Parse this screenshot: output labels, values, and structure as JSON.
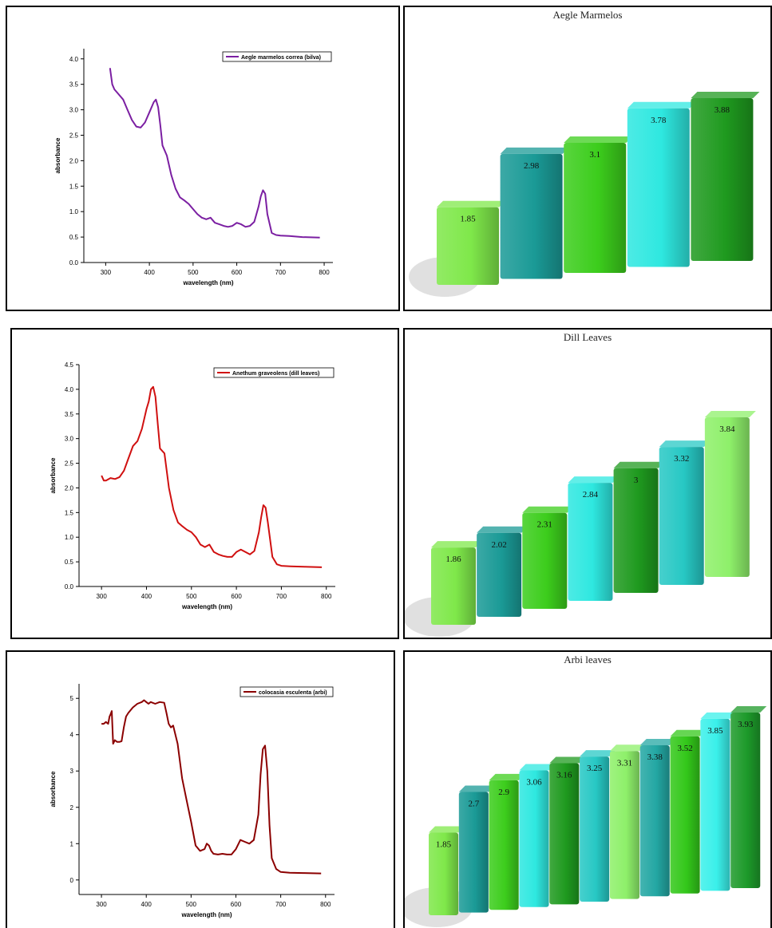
{
  "chart_data": [
    {
      "type": "line",
      "series": [
        {
          "name": "Aegle marmelos correa (bilva)",
          "color": "#7b1fa2",
          "x": [
            310,
            315,
            320,
            330,
            340,
            350,
            360,
            370,
            380,
            390,
            400,
            410,
            415,
            420,
            425,
            430,
            440,
            450,
            460,
            470,
            480,
            490,
            500,
            510,
            520,
            530,
            540,
            550,
            560,
            570,
            580,
            590,
            600,
            610,
            620,
            630,
            640,
            650,
            655,
            660,
            665,
            670,
            680,
            690,
            700,
            720,
            750,
            790
          ],
          "y": [
            3.82,
            3.5,
            3.4,
            3.3,
            3.2,
            3.0,
            2.8,
            2.67,
            2.65,
            2.75,
            2.95,
            3.15,
            3.2,
            3.05,
            2.7,
            2.3,
            2.1,
            1.72,
            1.45,
            1.28,
            1.22,
            1.15,
            1.05,
            0.95,
            0.88,
            0.85,
            0.88,
            0.78,
            0.75,
            0.72,
            0.7,
            0.72,
            0.78,
            0.75,
            0.7,
            0.72,
            0.8,
            1.1,
            1.3,
            1.42,
            1.35,
            0.95,
            0.58,
            0.54,
            0.53,
            0.52,
            0.5,
            0.49
          ]
        }
      ],
      "xlabel": "wavelength (nm)",
      "ylabel": "absorbance",
      "xlim": [
        250,
        820
      ],
      "ylim": [
        0,
        4.2
      ],
      "xticks": [
        300,
        400,
        500,
        600,
        700,
        800
      ],
      "yticks": [
        0.0,
        0.5,
        1.0,
        1.5,
        2.0,
        2.5,
        3.0,
        3.5,
        4.0
      ],
      "ytick_labels": [
        "0.0",
        "0.5",
        "1.0",
        "1.5",
        "2.0",
        "2.5",
        "3.0",
        "3.5",
        "4.0"
      ],
      "legend": "top-right"
    },
    {
      "type": "bar",
      "title": "Aegle Marmelos",
      "values": [
        1.85,
        2.98,
        3.1,
        3.78,
        3.88
      ],
      "labels": [
        "1.85",
        "2.98",
        "3.1",
        "3.78",
        "3.88"
      ],
      "colors": [
        "#7fe84a",
        "#1a9a96",
        "#3ccd1c",
        "#2ee8e0",
        "#1f9a1f"
      ]
    },
    {
      "type": "line",
      "series": [
        {
          "name": "Anethum graveolens (dill leaves)",
          "color": "#d01010",
          "x": [
            300,
            305,
            310,
            320,
            330,
            340,
            350,
            360,
            370,
            380,
            390,
            400,
            405,
            410,
            415,
            420,
            425,
            430,
            440,
            450,
            460,
            470,
            480,
            490,
            500,
            510,
            520,
            530,
            540,
            550,
            560,
            570,
            580,
            590,
            600,
            610,
            620,
            630,
            640,
            650,
            655,
            660,
            665,
            670,
            680,
            690,
            700,
            720,
            750,
            790
          ],
          "y": [
            2.25,
            2.15,
            2.15,
            2.2,
            2.18,
            2.22,
            2.35,
            2.6,
            2.85,
            2.95,
            3.2,
            3.6,
            3.75,
            4.0,
            4.05,
            3.85,
            3.3,
            2.8,
            2.7,
            2.0,
            1.55,
            1.3,
            1.22,
            1.15,
            1.1,
            1.0,
            0.85,
            0.8,
            0.85,
            0.7,
            0.65,
            0.62,
            0.6,
            0.6,
            0.7,
            0.75,
            0.7,
            0.65,
            0.72,
            1.1,
            1.4,
            1.65,
            1.6,
            1.3,
            0.6,
            0.45,
            0.42,
            0.41,
            0.4,
            0.39
          ]
        }
      ],
      "xlabel": "wavelength (nm)",
      "ylabel": "absorbance",
      "xlim": [
        250,
        820
      ],
      "ylim": [
        0,
        4.5
      ],
      "xticks": [
        300,
        400,
        500,
        600,
        700,
        800
      ],
      "yticks": [
        0.0,
        0.5,
        1.0,
        1.5,
        2.0,
        2.5,
        3.0,
        3.5,
        4.0,
        4.5
      ],
      "ytick_labels": [
        "0.0",
        "0.5",
        "1.0",
        "1.5",
        "2.0",
        "2.5",
        "3.0",
        "3.5",
        "4.0",
        "4.5"
      ],
      "legend": "top-right"
    },
    {
      "type": "bar",
      "title": "Dill Leaves",
      "values": [
        1.86,
        2.02,
        2.31,
        2.84,
        3,
        3.32,
        3.84
      ],
      "labels": [
        "1.86",
        "2.02",
        "2.31",
        "2.84",
        "3",
        "3.32",
        "3.84"
      ],
      "colors": [
        "#7fe84a",
        "#1a9a96",
        "#3ccd1c",
        "#2ee8e0",
        "#1f9a1f",
        "#27c8c4",
        "#8ef06a"
      ]
    },
    {
      "type": "line",
      "series": [
        {
          "name": "colocasia esculenta (arbi)",
          "color": "#8b0000",
          "x": [
            300,
            305,
            310,
            315,
            318,
            320,
            323,
            326,
            330,
            335,
            340,
            345,
            350,
            355,
            360,
            370,
            380,
            390,
            395,
            400,
            405,
            410,
            420,
            430,
            440,
            445,
            450,
            455,
            460,
            470,
            480,
            490,
            500,
            510,
            520,
            530,
            535,
            540,
            545,
            550,
            560,
            570,
            580,
            590,
            600,
            610,
            620,
            630,
            640,
            650,
            655,
            660,
            665,
            670,
            675,
            680,
            690,
            700,
            720,
            750,
            790
          ],
          "y": [
            4.3,
            4.3,
            4.35,
            4.3,
            4.5,
            4.55,
            4.65,
            3.75,
            3.85,
            3.8,
            3.8,
            3.82,
            4.2,
            4.5,
            4.6,
            4.75,
            4.85,
            4.9,
            4.95,
            4.9,
            4.85,
            4.9,
            4.85,
            4.9,
            4.88,
            4.6,
            4.3,
            4.2,
            4.25,
            3.75,
            2.8,
            2.2,
            1.6,
            0.95,
            0.8,
            0.85,
            1.0,
            0.95,
            0.8,
            0.72,
            0.7,
            0.72,
            0.7,
            0.7,
            0.85,
            1.1,
            1.05,
            1.0,
            1.1,
            1.8,
            2.9,
            3.6,
            3.7,
            3.0,
            1.5,
            0.6,
            0.3,
            0.22,
            0.2,
            0.19,
            0.18
          ]
        }
      ],
      "xlabel": "wavelength (nm)",
      "ylabel": "absorbance",
      "xlim": [
        250,
        820
      ],
      "ylim": [
        -0.4,
        5.4
      ],
      "xticks": [
        300,
        400,
        500,
        600,
        700,
        800
      ],
      "yticks": [
        0,
        1,
        2,
        3,
        4,
        5
      ],
      "ytick_labels": [
        "0",
        "1",
        "2",
        "3",
        "4",
        "5"
      ],
      "legend": "top-right"
    },
    {
      "type": "bar",
      "title": "Arbi leaves",
      "values": [
        1.85,
        2.7,
        2.9,
        3.06,
        3.16,
        3.25,
        3.31,
        3.38,
        3.52,
        3.85,
        3.93
      ],
      "labels": [
        "1.85",
        "2.7",
        "2.9",
        "3.06",
        "3.16",
        "3.25",
        "3.31",
        "3.38",
        "3.52",
        "3.85",
        "3.93"
      ],
      "colors": [
        "#7fe84a",
        "#1a9a96",
        "#3ccd1c",
        "#2ee8e0",
        "#1f9a1f",
        "#27c8c4",
        "#8ef06a",
        "#23a7a3",
        "#33c81a",
        "#3af0ea",
        "#1d9a2a"
      ]
    }
  ]
}
